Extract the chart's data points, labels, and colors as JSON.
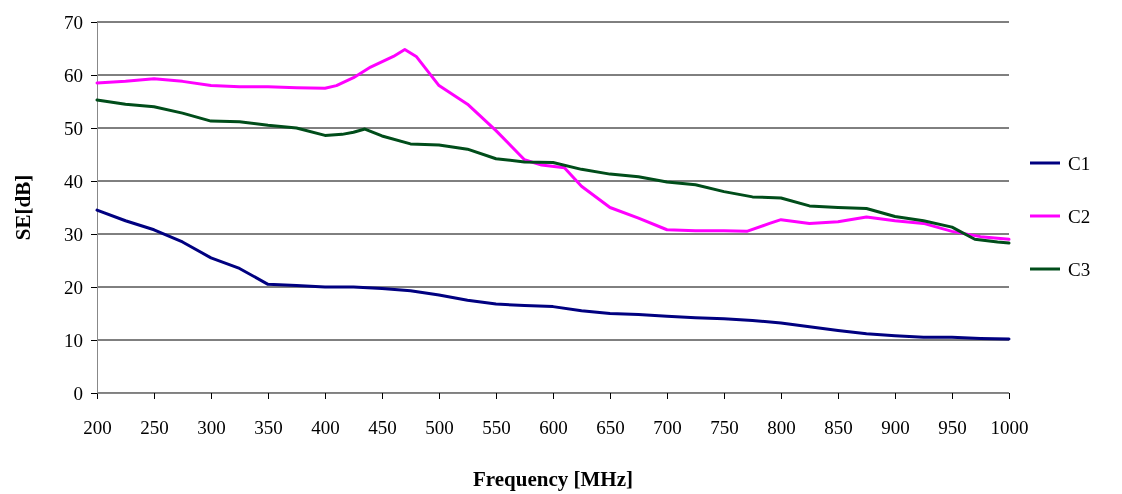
{
  "chart_data": {
    "type": "line",
    "xlabel": "Frequency [MHz]",
    "ylabel": "SE[dB]",
    "xlim": [
      200,
      1000
    ],
    "xticks": [
      200,
      250,
      300,
      350,
      400,
      450,
      500,
      550,
      600,
      650,
      700,
      750,
      800,
      850,
      900,
      950,
      1000
    ],
    "ylim": [
      0,
      70
    ],
    "yticks": [
      0,
      10,
      20,
      30,
      40,
      50,
      60,
      70
    ],
    "grid": "y",
    "legend": "right",
    "marker": "none",
    "line_style": "solid",
    "series": [
      {
        "name": "C1",
        "color": "#000080",
        "x": [
          200,
          225,
          250,
          275,
          300,
          325,
          350,
          375,
          400,
          425,
          450,
          475,
          500,
          525,
          550,
          575,
          600,
          625,
          650,
          675,
          700,
          725,
          750,
          775,
          800,
          825,
          850,
          875,
          900,
          925,
          950,
          975,
          1000
        ],
        "values": [
          34.5,
          32.5,
          30.8,
          28.5,
          25.5,
          23.5,
          20.5,
          20.3,
          20,
          20,
          19.7,
          19.3,
          18.5,
          17.5,
          16.8,
          16.5,
          16.3,
          15.5,
          15,
          14.8,
          14.5,
          14.2,
          14,
          13.7,
          13.2,
          12.5,
          11.8,
          11.2,
          10.8,
          10.5,
          10.5,
          10.3,
          10.2
        ]
      },
      {
        "name": "C2",
        "color": "#ff00ff",
        "x": [
          200,
          225,
          250,
          275,
          300,
          325,
          350,
          375,
          400,
          410,
          425,
          440,
          460,
          470,
          480,
          500,
          525,
          550,
          575,
          590,
          610,
          625,
          650,
          675,
          700,
          725,
          750,
          770,
          790,
          800,
          825,
          850,
          875,
          900,
          925,
          950,
          975,
          1000
        ],
        "values": [
          58.5,
          58.8,
          59.3,
          58.8,
          58,
          57.8,
          57.8,
          57.6,
          57.5,
          58,
          59.5,
          61.5,
          63.5,
          64.8,
          63.5,
          58,
          54.5,
          49.5,
          44,
          43,
          42.5,
          39,
          35,
          33,
          30.8,
          30.6,
          30.6,
          30.5,
          32,
          32.7,
          32,
          32.3,
          33.2,
          32.5,
          32,
          30.5,
          29.5,
          29
        ]
      },
      {
        "name": "C3",
        "color": "#004d1a",
        "x": [
          200,
          225,
          250,
          275,
          300,
          325,
          350,
          375,
          400,
          415,
          425,
          435,
          450,
          475,
          500,
          525,
          550,
          575,
          600,
          625,
          650,
          675,
          700,
          725,
          750,
          775,
          800,
          825,
          850,
          875,
          900,
          925,
          950,
          970,
          990,
          1000
        ],
        "values": [
          55.3,
          54.5,
          54,
          52.8,
          51.3,
          51.2,
          50.5,
          50,
          48.6,
          48.8,
          49.2,
          49.8,
          48.5,
          47,
          46.8,
          46,
          44.2,
          43.6,
          43.5,
          42.2,
          41.3,
          40.8,
          39.8,
          39.3,
          38,
          37,
          36.8,
          35.3,
          35,
          34.8,
          33.3,
          32.5,
          31.3,
          29,
          28.5,
          28.3
        ]
      }
    ]
  }
}
